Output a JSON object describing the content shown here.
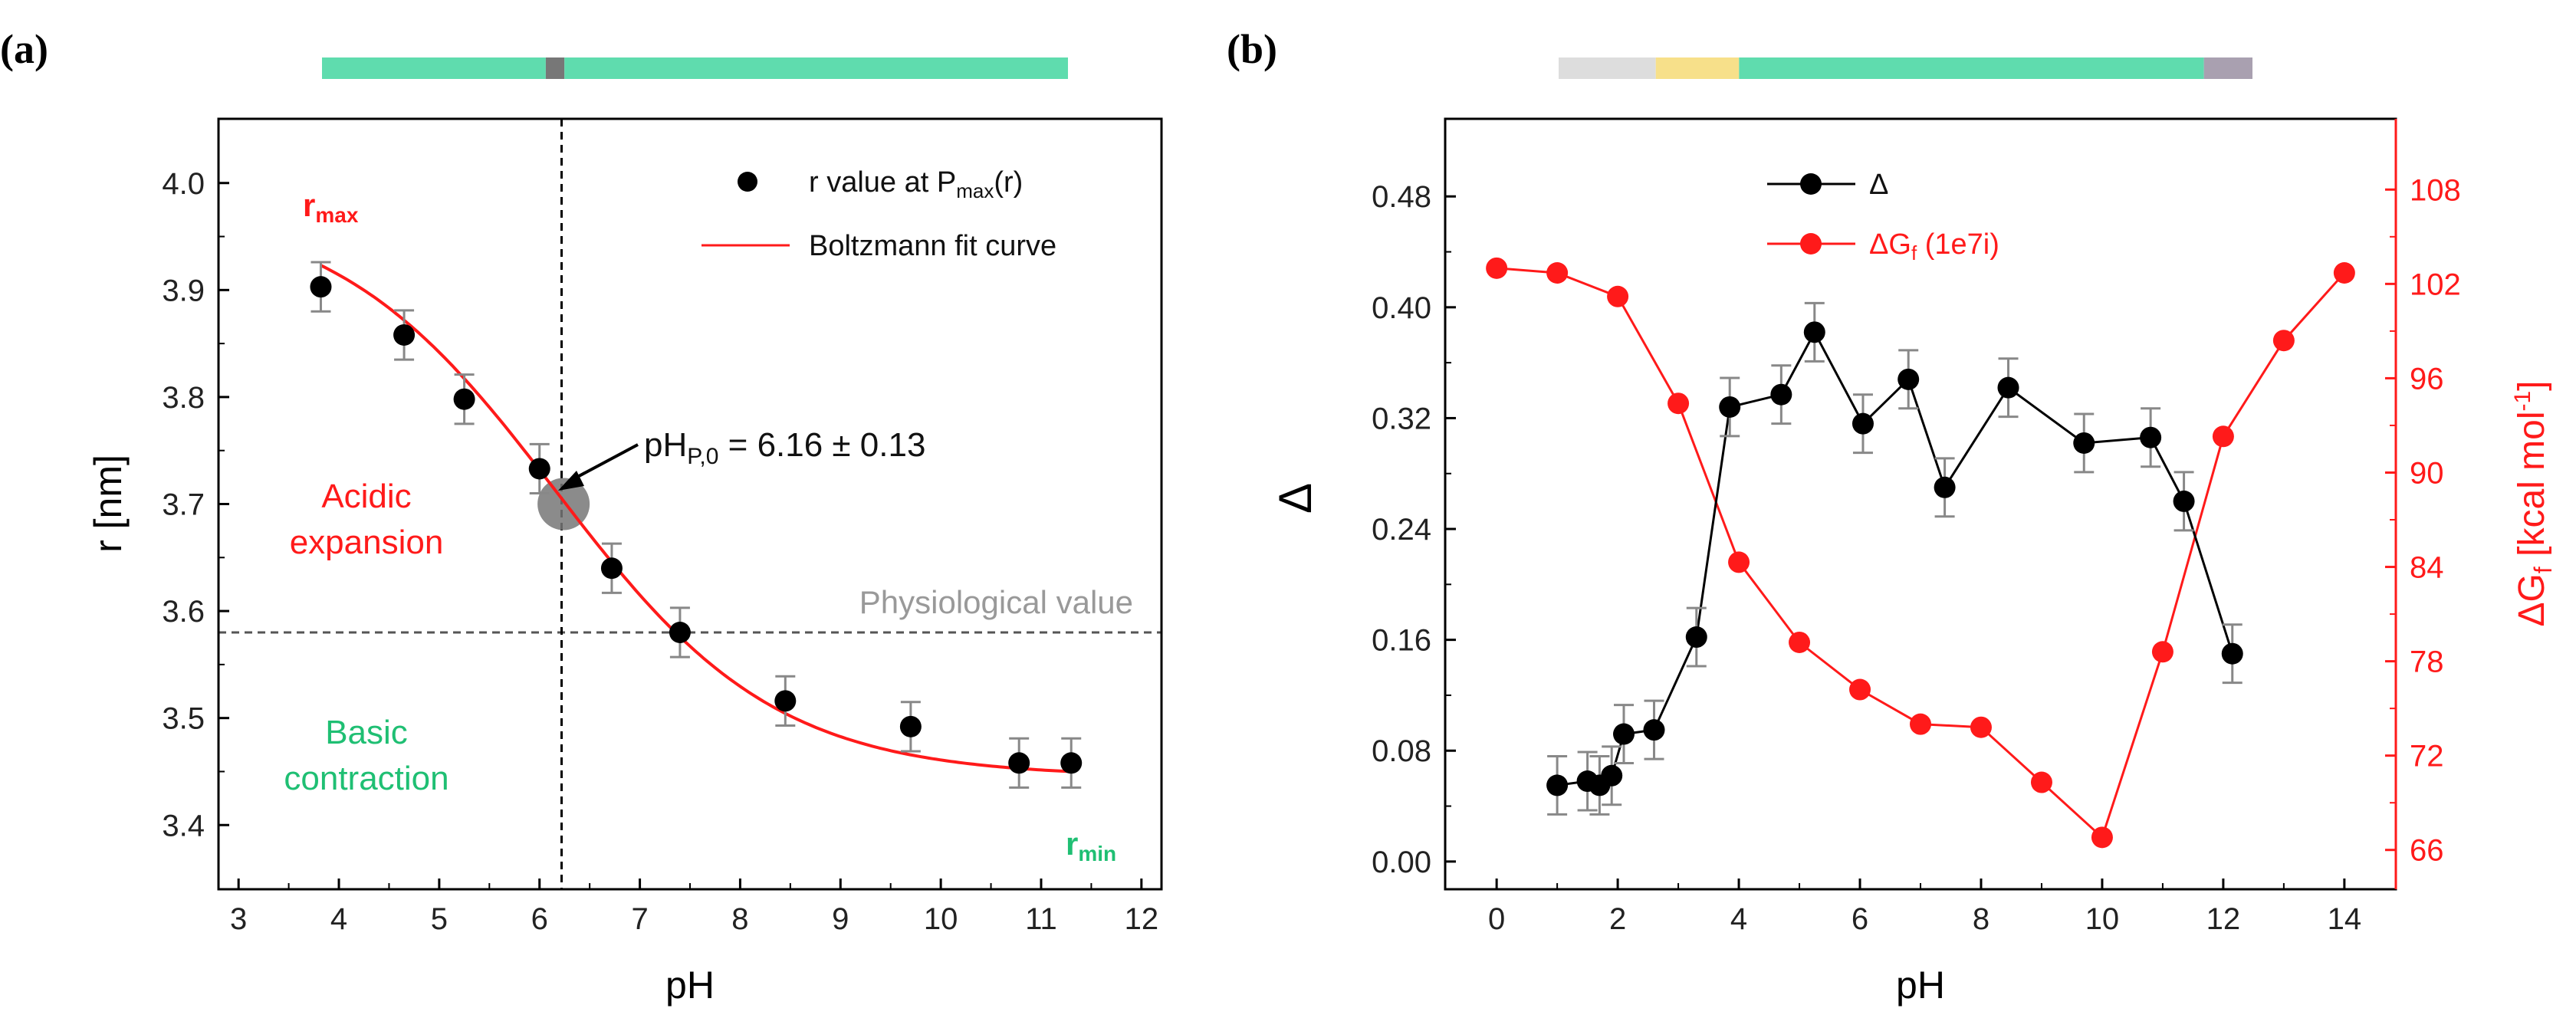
{
  "colors": {
    "red": "#ff1a1a",
    "green": "#1fbf73",
    "grey_text": "#999999",
    "black": "#000000",
    "errorbar": "#888888",
    "band_teal": "#5fdcae",
    "band_grey": "#dddddd",
    "band_yellow": "#f7e08a",
    "band_mauve": "#a9a0b0",
    "band_dark": "#777777"
  },
  "chart_data": [
    {
      "panel": "(a)",
      "type": "scatter",
      "xlabel": "pH",
      "ylabel": "r  [nm]",
      "xlim": [
        2.8,
        12.2
      ],
      "ylim": [
        3.34,
        4.06
      ],
      "xticks": [
        3,
        4,
        5,
        6,
        7,
        8,
        9,
        10,
        11,
        12
      ],
      "yticks": [
        3.4,
        3.5,
        3.6,
        3.7,
        3.8,
        3.9,
        4.0
      ],
      "xtick_labels": [
        "3",
        "4",
        "5",
        "6",
        "7",
        "8",
        "9",
        "10",
        "11",
        "12"
      ],
      "ytick_labels": [
        "3.4",
        "3.5",
        "3.6",
        "3.7",
        "3.8",
        "3.9",
        "4.0"
      ],
      "series": [
        {
          "name": "r value at P",
          "name_sub": "max",
          "name_suffix": "(r)",
          "x": [
            3.82,
            4.65,
            5.25,
            6.0,
            6.72,
            7.4,
            8.45,
            9.7,
            10.78,
            11.3
          ],
          "y": [
            3.903,
            3.858,
            3.798,
            3.733,
            3.64,
            3.58,
            3.516,
            3.492,
            3.458,
            3.458
          ],
          "err": [
            0.023,
            0.023,
            0.023,
            0.023,
            0.023,
            0.023,
            0.023,
            0.023,
            0.023,
            0.023
          ]
        },
        {
          "name": "Boltzmann fit curve",
          "model": "boltzmann",
          "A1": 3.98,
          "A2": 3.445,
          "x0": 6.16,
          "dx": 1.1,
          "x_range": [
            3.82,
            11.3
          ]
        }
      ],
      "annotations": {
        "rmax": "r",
        "rmax_sub": "max",
        "rmin": "r",
        "rmin_sub": "min",
        "acidic_1": "Acidic",
        "acidic_2": "expansion",
        "basic_1": "Basic",
        "basic_2": "contraction",
        "physio": "Physiological value",
        "physio_y": 3.58,
        "vline_x": 6.22,
        "midpoint": {
          "x": 6.24,
          "y": 3.7
        },
        "php_main": "pH",
        "php_sub": "P,0",
        "php_rest": " = 6.16 ± 0.13"
      },
      "top_band": [
        {
          "from": 0,
          "to": 0.3,
          "color": "#5fdcae"
        },
        {
          "from": 0.3,
          "to": 0.325,
          "color": "#777777"
        },
        {
          "from": 0.325,
          "to": 1,
          "color": "#5fdcae"
        }
      ]
    },
    {
      "panel": "(b)",
      "type": "line",
      "xlabel": "pH",
      "ylabel": "Δ",
      "y2label_main": "ΔG",
      "y2label_sub": "f",
      "y2label_rest": "  [kcal mol",
      "y2label_sup": "-1",
      "y2label_close": "]",
      "xlim": [
        -0.85,
        14.85
      ],
      "ylim": [
        -0.02,
        0.536
      ],
      "y2lim": [
        63.5,
        112.5
      ],
      "xticks": [
        0,
        2,
        4,
        6,
        8,
        10,
        12,
        14
      ],
      "yticks": [
        0.0,
        0.08,
        0.16,
        0.24,
        0.32,
        0.4,
        0.48
      ],
      "y2ticks": [
        66,
        72,
        78,
        84,
        90,
        96,
        102,
        108
      ],
      "xtick_labels": [
        "0",
        "2",
        "4",
        "6",
        "8",
        "10",
        "12",
        "14"
      ],
      "ytick_labels": [
        "0.00",
        "0.08",
        "0.16",
        "0.24",
        "0.32",
        "0.40",
        "0.48"
      ],
      "y2tick_labels": [
        "66",
        "72",
        "78",
        "84",
        "90",
        "96",
        "102",
        "108"
      ],
      "series": [
        {
          "name": "Δ",
          "axis": "left",
          "x": [
            1.0,
            1.5,
            1.7,
            1.9,
            2.1,
            2.6,
            3.3,
            3.85,
            4.7,
            5.25,
            6.05,
            6.8,
            7.4,
            8.45,
            9.7,
            10.8,
            11.35,
            12.15
          ],
          "y": [
            0.055,
            0.058,
            0.055,
            0.062,
            0.092,
            0.095,
            0.162,
            0.328,
            0.337,
            0.382,
            0.316,
            0.348,
            0.27,
            0.342,
            0.302,
            0.306,
            0.26,
            0.15
          ],
          "err": [
            0.021,
            0.021,
            0.021,
            0.021,
            0.021,
            0.021,
            0.021,
            0.021,
            0.021,
            0.021,
            0.021,
            0.021,
            0.021,
            0.021,
            0.021,
            0.021,
            0.021,
            0.021
          ]
        },
        {
          "name": "ΔG",
          "name_sub": "f",
          "name_suffix": " (1e7i)",
          "axis": "right",
          "x": [
            0,
            1,
            2,
            3,
            4,
            5,
            6,
            7,
            8,
            9,
            10,
            11,
            12,
            13,
            14
          ],
          "y": [
            103.0,
            102.7,
            101.2,
            94.4,
            84.3,
            79.2,
            76.2,
            74.0,
            73.8,
            70.3,
            66.8,
            78.6,
            92.3,
            98.4,
            102.7
          ]
        }
      ],
      "top_band": [
        {
          "from": 0,
          "to": 0.14,
          "color": "#dddddd"
        },
        {
          "from": 0.14,
          "to": 0.26,
          "color": "#f7e08a"
        },
        {
          "from": 0.26,
          "to": 0.93,
          "color": "#5fdcae"
        },
        {
          "from": 0.93,
          "to": 1,
          "color": "#a9a0b0"
        }
      ]
    }
  ]
}
